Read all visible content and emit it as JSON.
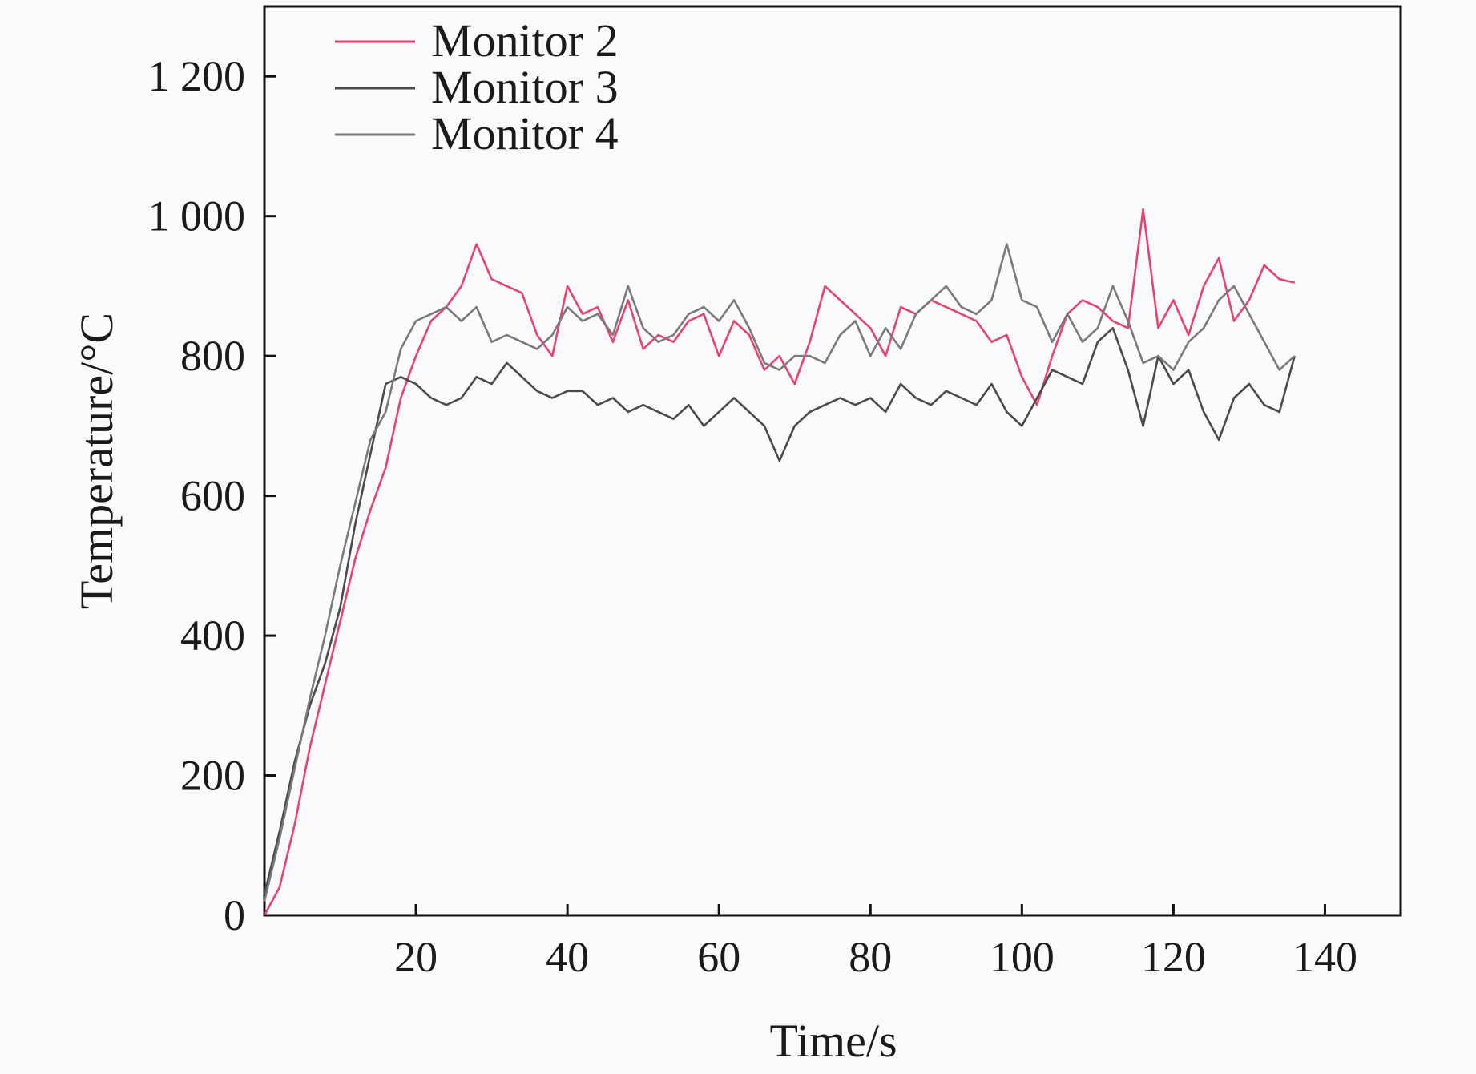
{
  "chart_data": {
    "type": "line",
    "title": "",
    "xlabel": "Time/s",
    "ylabel": "Temperature/°C",
    "xlim": [
      0,
      150
    ],
    "ylim": [
      0,
      1300
    ],
    "xticks": [
      20,
      40,
      60,
      80,
      100,
      120,
      140
    ],
    "xtick_labels": [
      "20",
      "40",
      "60",
      "80",
      "100",
      "120",
      "140"
    ],
    "yticks": [
      0,
      200,
      400,
      600,
      800,
      1000,
      1200
    ],
    "ytick_labels": [
      "0",
      "200",
      "400",
      "600",
      "800",
      "1 000",
      "1 200"
    ],
    "grid": false,
    "legend_position": "top-left",
    "x": [
      0,
      2,
      4,
      6,
      8,
      10,
      12,
      14,
      16,
      18,
      20,
      22,
      24,
      26,
      28,
      30,
      32,
      34,
      36,
      38,
      40,
      42,
      44,
      46,
      48,
      50,
      52,
      54,
      56,
      58,
      60,
      62,
      64,
      66,
      68,
      70,
      72,
      74,
      76,
      78,
      80,
      82,
      84,
      86,
      88,
      90,
      92,
      94,
      96,
      98,
      100,
      102,
      104,
      106,
      108,
      110,
      112,
      114,
      116,
      118,
      120,
      122,
      124,
      126,
      128,
      130,
      132,
      134,
      136
    ],
    "series": [
      {
        "name": "Monitor 2",
        "color": "#e8436e",
        "values": [
          0,
          40,
          130,
          240,
          330,
          420,
          510,
          580,
          640,
          740,
          800,
          850,
          870,
          900,
          960,
          910,
          900,
          890,
          830,
          800,
          900,
          860,
          870,
          820,
          880,
          810,
          830,
          820,
          850,
          860,
          800,
          850,
          830,
          780,
          800,
          760,
          820,
          900,
          880,
          860,
          840,
          800,
          870,
          860,
          880,
          870,
          860,
          850,
          820,
          830,
          770,
          730,
          800,
          860,
          880,
          870,
          850,
          840,
          1010,
          840,
          880,
          830,
          900,
          940,
          850,
          880,
          930,
          910,
          905
        ]
      },
      {
        "name": "Monitor 3",
        "color": "#4a4a4a",
        "values": [
          30,
          120,
          220,
          300,
          360,
          440,
          560,
          660,
          760,
          770,
          760,
          740,
          730,
          740,
          770,
          760,
          790,
          770,
          750,
          740,
          750,
          750,
          730,
          740,
          720,
          730,
          720,
          710,
          730,
          700,
          720,
          740,
          720,
          700,
          650,
          700,
          720,
          730,
          740,
          730,
          740,
          720,
          760,
          740,
          730,
          750,
          740,
          730,
          760,
          720,
          700,
          740,
          780,
          770,
          760,
          820,
          840,
          780,
          700,
          800,
          760,
          780,
          720,
          680,
          740,
          760,
          730,
          720,
          800
        ]
      },
      {
        "name": "Monitor 4",
        "color": "#7a7a7a",
        "values": [
          20,
          110,
          210,
          310,
          400,
          500,
          590,
          680,
          720,
          810,
          850,
          860,
          870,
          850,
          870,
          820,
          830,
          820,
          810,
          830,
          870,
          850,
          860,
          830,
          900,
          840,
          820,
          830,
          860,
          870,
          850,
          880,
          840,
          790,
          780,
          800,
          800,
          790,
          830,
          850,
          800,
          840,
          810,
          860,
          880,
          900,
          870,
          860,
          880,
          960,
          880,
          870,
          820,
          860,
          820,
          840,
          900,
          850,
          790,
          800,
          780,
          820,
          840,
          880,
          900,
          860,
          820,
          780,
          800
        ]
      }
    ]
  }
}
